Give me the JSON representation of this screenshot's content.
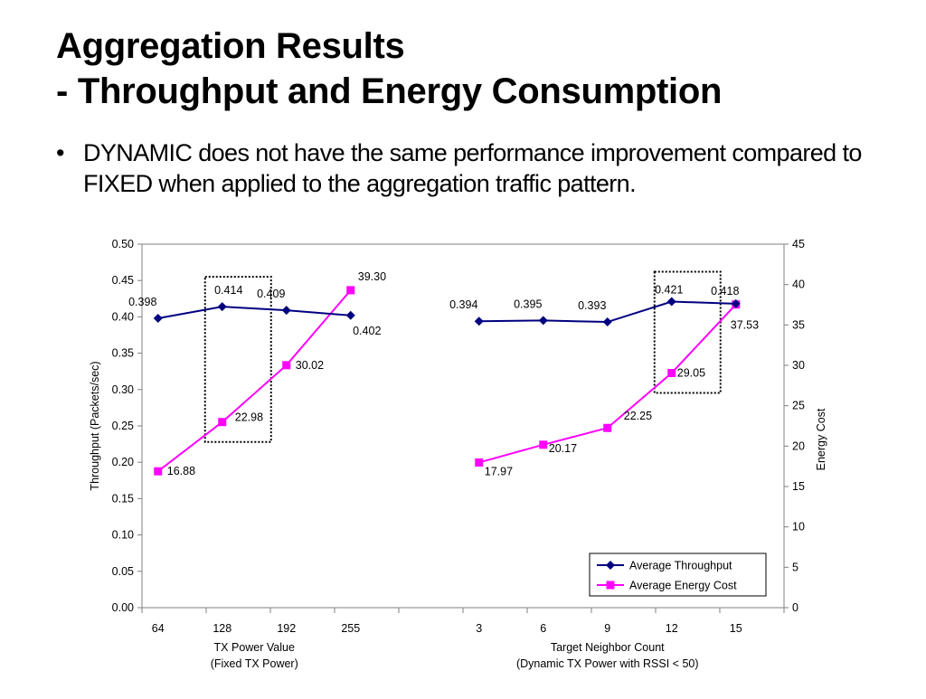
{
  "slide": {
    "title_line1": "Aggregation Results",
    "title_line2": "- Throughput and Energy Consumption",
    "bullet": "DYNAMIC does not have the same performance improvement compared to FIXED when applied to the aggregation traffic pattern."
  },
  "chart_data": {
    "type": "line",
    "ylabel": "Throughput (Packets/sec)",
    "y2label": "Energy Cost",
    "ylim": [
      0,
      0.5
    ],
    "y2lim": [
      0,
      45
    ],
    "yticks": [
      "0.00",
      "0.05",
      "0.10",
      "0.15",
      "0.20",
      "0.25",
      "0.30",
      "0.35",
      "0.40",
      "0.45",
      "0.50"
    ],
    "y2ticks": [
      "0",
      "5",
      "10",
      "15",
      "20",
      "25",
      "30",
      "35",
      "40",
      "45"
    ],
    "groups": [
      {
        "xlabel_line1": "TX Power Value",
        "xlabel_line2": "(Fixed TX Power)",
        "categories": [
          "64",
          "128",
          "192",
          "255"
        ],
        "throughput": [
          0.398,
          0.414,
          0.409,
          0.402
        ],
        "throughput_labels": [
          "0.398",
          "0.414",
          "0.409",
          "0.402"
        ],
        "energy": [
          16.88,
          22.98,
          30.02,
          39.3
        ],
        "energy_labels": [
          "16.88",
          "22.98",
          "30.02",
          "39.30"
        ]
      },
      {
        "xlabel_line1": "Target Neighbor Count",
        "xlabel_line2": "(Dynamic TX Power with RSSI < 50)",
        "categories": [
          "3",
          "6",
          "9",
          "12",
          "15"
        ],
        "throughput": [
          0.394,
          0.395,
          0.393,
          0.421,
          0.418
        ],
        "throughput_labels": [
          "0.394",
          "0.395",
          "0.393",
          "0.421",
          "0.418"
        ],
        "energy": [
          17.97,
          20.17,
          22.25,
          29.05,
          37.53
        ],
        "energy_labels": [
          "17.97",
          "20.17",
          "22.25",
          "29.05",
          "37.53"
        ]
      }
    ],
    "series": [
      {
        "name": "Average Throughput",
        "color": "#000080",
        "marker": "diamond",
        "axis": "left"
      },
      {
        "name": "Average Energy Cost",
        "color": "#FF00FF",
        "marker": "square",
        "axis": "right"
      }
    ],
    "legend": "bottom-right",
    "highlight_categories": [
      "128",
      "12"
    ],
    "grid": false
  }
}
